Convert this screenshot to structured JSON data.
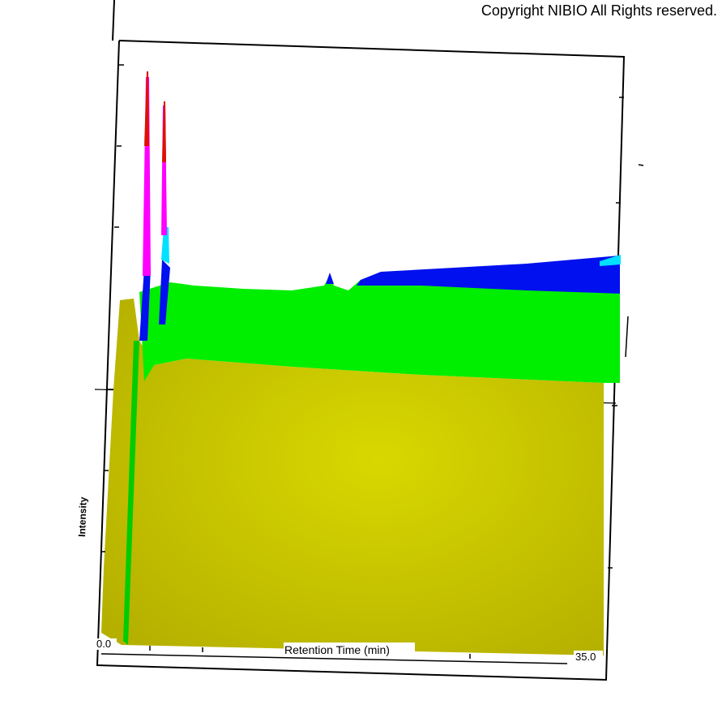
{
  "copyright": "Copyright NIBIO All Rights reserved.",
  "chart_data": {
    "type": "surface",
    "xlabel": "Retention Time (min)",
    "ylabel": "Intensity",
    "xlim": [
      0.0,
      35.0
    ],
    "x_tick_labels": [
      "0.0",
      "35.0"
    ],
    "colormap": [
      "#c8c800",
      "#00ff00",
      "#0000ff",
      "#00ffff",
      "#ff00ff",
      "#ff0000"
    ]
  }
}
